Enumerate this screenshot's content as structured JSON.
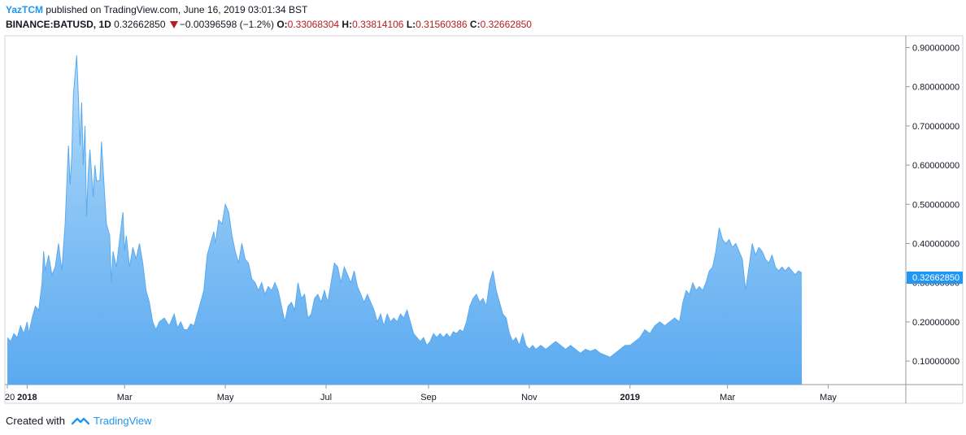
{
  "header": {
    "author": "YazTCM",
    "published_text": "published on TradingView.com, June 16, 2019 03:01:34 BST",
    "symbol": "BINANCE:BATUSD, 1D",
    "last": "0.32662850",
    "change": "−0.00396598 (−1.2%)",
    "o_label": "O:",
    "o_value": "0.33068304",
    "h_label": "H:",
    "h_value": "0.33814106",
    "l_label": "L:",
    "l_value": "0.31560386",
    "c_label": "C:",
    "c_value": "0.32662850"
  },
  "footer": {
    "created_with": "Created with",
    "brand": "TradingView"
  },
  "price_badge": "0.32662850",
  "colors": {
    "line": "#5aaaf0",
    "fill_top": "#b4dbfa",
    "fill_bottom": "#5aaaf0",
    "badge": "#2196f3",
    "down": "#b71c1c",
    "accent": "#2196f3"
  },
  "chart_data": {
    "type": "area",
    "x_range": [
      "2017-12-20",
      "2019-06-16"
    ],
    "ylim": [
      0.04,
      0.93
    ],
    "y_ticks": [
      "0.90000000",
      "0.80000000",
      "0.70000000",
      "0.60000000",
      "0.50000000",
      "0.40000000",
      "0.30000000",
      "0.20000000",
      "0.10000000"
    ],
    "y_tick_values": [
      0.9,
      0.8,
      0.7,
      0.6,
      0.5,
      0.4,
      0.3,
      0.2,
      0.1
    ],
    "x_ticks": [
      {
        "date": "2017-12-20",
        "label": "20",
        "bold": false
      },
      {
        "date": "2018-01-01",
        "label": "2018",
        "bold": true
      },
      {
        "date": "2018-03-01",
        "label": "Mar",
        "bold": false
      },
      {
        "date": "2018-05-01",
        "label": "May",
        "bold": false
      },
      {
        "date": "2018-07-01",
        "label": "Jul",
        "bold": false
      },
      {
        "date": "2018-09-01",
        "label": "Sep",
        "bold": false
      },
      {
        "date": "2018-11-01",
        "label": "Nov",
        "bold": false
      },
      {
        "date": "2019-01-01",
        "label": "2019",
        "bold": true
      },
      {
        "date": "2019-03-01",
        "label": "Mar",
        "bold": false
      },
      {
        "date": "2019-05-01",
        "label": "May",
        "bold": false
      }
    ],
    "series": [
      {
        "points": [
          [
            "2017-12-20",
            0.16
          ],
          [
            "2017-12-22",
            0.15
          ],
          [
            "2017-12-24",
            0.17
          ],
          [
            "2017-12-26",
            0.16
          ],
          [
            "2017-12-28",
            0.19
          ],
          [
            "2017-12-30",
            0.17
          ],
          [
            "2018-01-01",
            0.2
          ],
          [
            "2018-01-02",
            0.17
          ],
          [
            "2018-01-04",
            0.21
          ],
          [
            "2018-01-06",
            0.24
          ],
          [
            "2018-01-08",
            0.23
          ],
          [
            "2018-01-10",
            0.3
          ],
          [
            "2018-01-11",
            0.38
          ],
          [
            "2018-01-12",
            0.33
          ],
          [
            "2018-01-14",
            0.37
          ],
          [
            "2018-01-16",
            0.32
          ],
          [
            "2018-01-18",
            0.34
          ],
          [
            "2018-01-20",
            0.4
          ],
          [
            "2018-01-22",
            0.33
          ],
          [
            "2018-01-24",
            0.45
          ],
          [
            "2018-01-26",
            0.65
          ],
          [
            "2018-01-27",
            0.55
          ],
          [
            "2018-01-28",
            0.62
          ],
          [
            "2018-01-29",
            0.78
          ],
          [
            "2018-01-31",
            0.88
          ],
          [
            "2018-02-01",
            0.78
          ],
          [
            "2018-02-02",
            0.65
          ],
          [
            "2018-02-03",
            0.76
          ],
          [
            "2018-02-04",
            0.6
          ],
          [
            "2018-02-05",
            0.7
          ],
          [
            "2018-02-06",
            0.47
          ],
          [
            "2018-02-07",
            0.58
          ],
          [
            "2018-02-08",
            0.64
          ],
          [
            "2018-02-10",
            0.52
          ],
          [
            "2018-02-11",
            0.6
          ],
          [
            "2018-02-12",
            0.56
          ],
          [
            "2018-02-14",
            0.56
          ],
          [
            "2018-02-15",
            0.66
          ],
          [
            "2018-02-17",
            0.52
          ],
          [
            "2018-02-18",
            0.45
          ],
          [
            "2018-02-20",
            0.42
          ],
          [
            "2018-02-21",
            0.3
          ],
          [
            "2018-02-22",
            0.38
          ],
          [
            "2018-02-24",
            0.34
          ],
          [
            "2018-02-26",
            0.41
          ],
          [
            "2018-02-28",
            0.48
          ],
          [
            "2018-03-01",
            0.38
          ],
          [
            "2018-03-02",
            0.42
          ],
          [
            "2018-03-04",
            0.34
          ],
          [
            "2018-03-06",
            0.39
          ],
          [
            "2018-03-08",
            0.36
          ],
          [
            "2018-03-10",
            0.4
          ],
          [
            "2018-03-12",
            0.35
          ],
          [
            "2018-03-14",
            0.28
          ],
          [
            "2018-03-16",
            0.25
          ],
          [
            "2018-03-18",
            0.2
          ],
          [
            "2018-03-20",
            0.18
          ],
          [
            "2018-03-22",
            0.2
          ],
          [
            "2018-03-25",
            0.21
          ],
          [
            "2018-03-28",
            0.19
          ],
          [
            "2018-03-31",
            0.22
          ],
          [
            "2018-04-02",
            0.185
          ],
          [
            "2018-04-04",
            0.2
          ],
          [
            "2018-04-06",
            0.18
          ],
          [
            "2018-04-08",
            0.18
          ],
          [
            "2018-04-10",
            0.195
          ],
          [
            "2018-04-12",
            0.19
          ],
          [
            "2018-04-14",
            0.22
          ],
          [
            "2018-04-16",
            0.25
          ],
          [
            "2018-04-18",
            0.28
          ],
          [
            "2018-04-20",
            0.37
          ],
          [
            "2018-04-22",
            0.4
          ],
          [
            "2018-04-24",
            0.43
          ],
          [
            "2018-04-25",
            0.4
          ],
          [
            "2018-04-27",
            0.46
          ],
          [
            "2018-04-29",
            0.45
          ],
          [
            "2018-05-01",
            0.5
          ],
          [
            "2018-05-03",
            0.48
          ],
          [
            "2018-05-05",
            0.42
          ],
          [
            "2018-05-07",
            0.38
          ],
          [
            "2018-05-09",
            0.35
          ],
          [
            "2018-05-11",
            0.4
          ],
          [
            "2018-05-13",
            0.36
          ],
          [
            "2018-05-15",
            0.35
          ],
          [
            "2018-05-17",
            0.31
          ],
          [
            "2018-05-19",
            0.3
          ],
          [
            "2018-05-21",
            0.28
          ],
          [
            "2018-05-23",
            0.3
          ],
          [
            "2018-05-25",
            0.27
          ],
          [
            "2018-05-27",
            0.29
          ],
          [
            "2018-05-29",
            0.28
          ],
          [
            "2018-05-31",
            0.3
          ],
          [
            "2018-06-02",
            0.28
          ],
          [
            "2018-06-04",
            0.24
          ],
          [
            "2018-06-06",
            0.2
          ],
          [
            "2018-06-08",
            0.24
          ],
          [
            "2018-06-10",
            0.25
          ],
          [
            "2018-06-12",
            0.23
          ],
          [
            "2018-06-14",
            0.3
          ],
          [
            "2018-06-16",
            0.26
          ],
          [
            "2018-06-18",
            0.27
          ],
          [
            "2018-06-20",
            0.21
          ],
          [
            "2018-06-22",
            0.22
          ],
          [
            "2018-06-24",
            0.26
          ],
          [
            "2018-06-26",
            0.27
          ],
          [
            "2018-06-28",
            0.25
          ],
          [
            "2018-06-30",
            0.28
          ],
          [
            "2018-07-02",
            0.25
          ],
          [
            "2018-07-04",
            0.3
          ],
          [
            "2018-07-06",
            0.35
          ],
          [
            "2018-07-08",
            0.34
          ],
          [
            "2018-07-10",
            0.3
          ],
          [
            "2018-07-12",
            0.34
          ],
          [
            "2018-07-14",
            0.32
          ],
          [
            "2018-07-16",
            0.3
          ],
          [
            "2018-07-18",
            0.33
          ],
          [
            "2018-07-20",
            0.29
          ],
          [
            "2018-07-22",
            0.27
          ],
          [
            "2018-07-24",
            0.25
          ],
          [
            "2018-07-26",
            0.27
          ],
          [
            "2018-07-28",
            0.25
          ],
          [
            "2018-07-30",
            0.23
          ],
          [
            "2018-08-01",
            0.2
          ],
          [
            "2018-08-03",
            0.22
          ],
          [
            "2018-08-05",
            0.19
          ],
          [
            "2018-08-07",
            0.22
          ],
          [
            "2018-08-09",
            0.2
          ],
          [
            "2018-08-11",
            0.21
          ],
          [
            "2018-08-13",
            0.2
          ],
          [
            "2018-08-15",
            0.22
          ],
          [
            "2018-08-17",
            0.21
          ],
          [
            "2018-08-19",
            0.23
          ],
          [
            "2018-08-21",
            0.2
          ],
          [
            "2018-08-23",
            0.17
          ],
          [
            "2018-08-25",
            0.16
          ],
          [
            "2018-08-27",
            0.15
          ],
          [
            "2018-08-29",
            0.16
          ],
          [
            "2018-08-31",
            0.14
          ],
          [
            "2018-09-02",
            0.15
          ],
          [
            "2018-09-04",
            0.17
          ],
          [
            "2018-09-06",
            0.16
          ],
          [
            "2018-09-08",
            0.17
          ],
          [
            "2018-09-10",
            0.16
          ],
          [
            "2018-09-12",
            0.17
          ],
          [
            "2018-09-14",
            0.16
          ],
          [
            "2018-09-16",
            0.175
          ],
          [
            "2018-09-18",
            0.17
          ],
          [
            "2018-09-20",
            0.18
          ],
          [
            "2018-09-22",
            0.175
          ],
          [
            "2018-09-24",
            0.2
          ],
          [
            "2018-09-26",
            0.24
          ],
          [
            "2018-09-28",
            0.26
          ],
          [
            "2018-09-30",
            0.27
          ],
          [
            "2018-10-02",
            0.25
          ],
          [
            "2018-10-04",
            0.26
          ],
          [
            "2018-10-06",
            0.24
          ],
          [
            "2018-10-08",
            0.3
          ],
          [
            "2018-10-10",
            0.33
          ],
          [
            "2018-10-12",
            0.28
          ],
          [
            "2018-10-14",
            0.25
          ],
          [
            "2018-10-16",
            0.22
          ],
          [
            "2018-10-18",
            0.21
          ],
          [
            "2018-10-20",
            0.17
          ],
          [
            "2018-10-22",
            0.15
          ],
          [
            "2018-10-24",
            0.16
          ],
          [
            "2018-10-26",
            0.14
          ],
          [
            "2018-10-28",
            0.17
          ],
          [
            "2018-10-30",
            0.14
          ],
          [
            "2018-11-01",
            0.13
          ],
          [
            "2018-11-03",
            0.14
          ],
          [
            "2018-11-05",
            0.13
          ],
          [
            "2018-11-08",
            0.14
          ],
          [
            "2018-11-11",
            0.13
          ],
          [
            "2018-11-14",
            0.14
          ],
          [
            "2018-11-17",
            0.15
          ],
          [
            "2018-11-20",
            0.14
          ],
          [
            "2018-11-23",
            0.13
          ],
          [
            "2018-11-26",
            0.14
          ],
          [
            "2018-11-29",
            0.13
          ],
          [
            "2018-12-02",
            0.12
          ],
          [
            "2018-12-05",
            0.13
          ],
          [
            "2018-12-08",
            0.125
          ],
          [
            "2018-12-11",
            0.13
          ],
          [
            "2018-12-14",
            0.12
          ],
          [
            "2018-12-17",
            0.115
          ],
          [
            "2018-12-20",
            0.11
          ],
          [
            "2018-12-23",
            0.12
          ],
          [
            "2018-12-26",
            0.13
          ],
          [
            "2018-12-29",
            0.14
          ],
          [
            "2019-01-01",
            0.14
          ],
          [
            "2019-01-04",
            0.15
          ],
          [
            "2019-01-07",
            0.16
          ],
          [
            "2019-01-10",
            0.18
          ],
          [
            "2019-01-13",
            0.17
          ],
          [
            "2019-01-16",
            0.19
          ],
          [
            "2019-01-19",
            0.2
          ],
          [
            "2019-01-22",
            0.19
          ],
          [
            "2019-01-25",
            0.2
          ],
          [
            "2019-01-28",
            0.21
          ],
          [
            "2019-01-31",
            0.2
          ],
          [
            "2019-02-02",
            0.25
          ],
          [
            "2019-02-04",
            0.28
          ],
          [
            "2019-02-06",
            0.27
          ],
          [
            "2019-02-08",
            0.3
          ],
          [
            "2019-02-10",
            0.28
          ],
          [
            "2019-02-12",
            0.29
          ],
          [
            "2019-02-14",
            0.28
          ],
          [
            "2019-02-16",
            0.3
          ],
          [
            "2019-02-18",
            0.33
          ],
          [
            "2019-02-20",
            0.34
          ],
          [
            "2019-02-22",
            0.38
          ],
          [
            "2019-02-24",
            0.44
          ],
          [
            "2019-02-26",
            0.41
          ],
          [
            "2019-02-28",
            0.4
          ],
          [
            "2019-03-02",
            0.41
          ],
          [
            "2019-03-04",
            0.39
          ],
          [
            "2019-03-06",
            0.4
          ],
          [
            "2019-03-08",
            0.38
          ],
          [
            "2019-03-10",
            0.36
          ],
          [
            "2019-03-12",
            0.28
          ],
          [
            "2019-03-14",
            0.34
          ],
          [
            "2019-03-16",
            0.4
          ],
          [
            "2019-03-18",
            0.37
          ],
          [
            "2019-03-20",
            0.39
          ],
          [
            "2019-03-22",
            0.38
          ],
          [
            "2019-03-24",
            0.36
          ],
          [
            "2019-03-26",
            0.35
          ],
          [
            "2019-03-28",
            0.37
          ],
          [
            "2019-03-30",
            0.34
          ],
          [
            "2019-04-01",
            0.33
          ],
          [
            "2019-04-03",
            0.34
          ],
          [
            "2019-04-05",
            0.33
          ],
          [
            "2019-04-07",
            0.34
          ],
          [
            "2019-04-09",
            0.33
          ],
          [
            "2019-04-11",
            0.32
          ],
          [
            "2019-04-13",
            0.33
          ],
          [
            "2019-04-15",
            0.325
          ]
        ]
      }
    ]
  }
}
